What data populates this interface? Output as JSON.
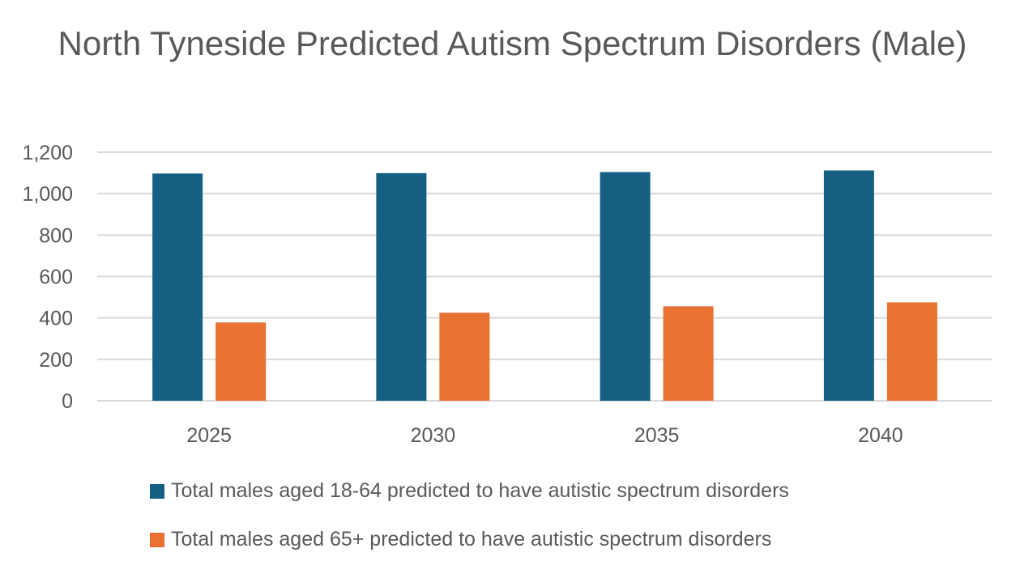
{
  "chart_data": {
    "type": "bar",
    "title": "North Tyneside Predicted Autism Spectrum Disorders (Male)",
    "categories": [
      "2025",
      "2030",
      "2035",
      "2040"
    ],
    "series": [
      {
        "name": "Total males aged 18-64 predicted to have autistic spectrum disorders",
        "color": "#156082",
        "values": [
          1097,
          1099,
          1104,
          1112
        ]
      },
      {
        "name": "Total males aged 65+ predicted to have autistic spectrum disorders",
        "color": "#E97132",
        "values": [
          378,
          425,
          456,
          475
        ]
      }
    ],
    "yticks": [
      "0",
      "200",
      "400",
      "600",
      "800",
      "1,000",
      "1,200"
    ],
    "ylim": [
      0,
      1200
    ],
    "grid": true,
    "legend": "bottom",
    "xlabel": "",
    "ylabel": ""
  }
}
